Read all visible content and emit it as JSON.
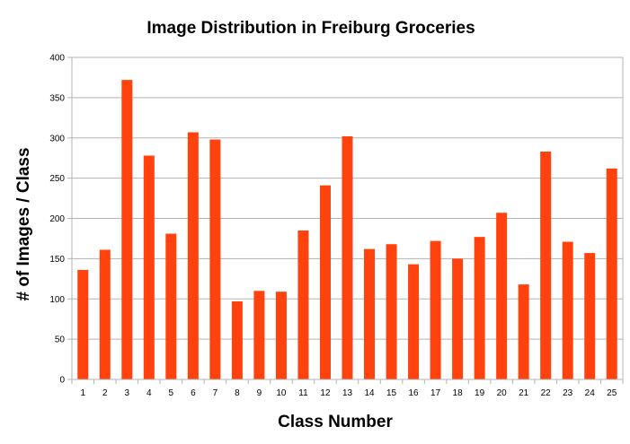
{
  "chart_data": {
    "type": "bar",
    "title": "Image Distribution in Freiburg Groceries",
    "xlabel": "Class Number",
    "ylabel": "# of Images / Class",
    "categories": [
      "1",
      "2",
      "3",
      "4",
      "5",
      "6",
      "7",
      "8",
      "9",
      "10",
      "11",
      "12",
      "13",
      "14",
      "15",
      "16",
      "17",
      "18",
      "19",
      "20",
      "21",
      "22",
      "23",
      "24",
      "25"
    ],
    "values": [
      136,
      161,
      372,
      278,
      181,
      307,
      298,
      97,
      110,
      109,
      185,
      241,
      302,
      162,
      168,
      143,
      172,
      150,
      177,
      207,
      118,
      283,
      171,
      157,
      262
    ],
    "ylim": [
      0,
      400
    ],
    "yticks": [
      0,
      50,
      100,
      150,
      200,
      250,
      300,
      350,
      400
    ],
    "grid": true,
    "legend": "none",
    "colors": {
      "bar": "#ff420e",
      "grid": "#b3b3b3",
      "axis": "#b3b3b3"
    }
  }
}
